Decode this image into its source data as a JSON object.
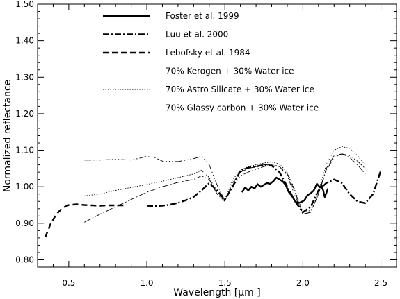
{
  "chart_data": {
    "type": "line",
    "xlabel": "Wavelength [μm ]",
    "ylabel": "Normalized reflectance",
    "xlim": [
      0.3,
      2.6
    ],
    "ylim": [
      0.78,
      1.5
    ],
    "xticks": [
      0.5,
      1.0,
      1.5,
      2.0,
      2.5
    ],
    "yticks": [
      0.8,
      0.9,
      1.0,
      1.1,
      1.2,
      1.3,
      1.4,
      1.5
    ],
    "xtick_labels": [
      "0.5",
      "1.0",
      "1.5",
      "2.0",
      "2.5"
    ],
    "ytick_labels": [
      "0.80",
      "0.90",
      "1.00",
      "1.10",
      "1.20",
      "1.30",
      "1.40",
      "1.50"
    ],
    "grid": false,
    "legend_position": "top-left",
    "series": [
      {
        "name": "Foster et al. 1999",
        "style": "solid-thick",
        "x": [
          1.61,
          1.63,
          1.65,
          1.67,
          1.69,
          1.71,
          1.73,
          1.75,
          1.77,
          1.79,
          1.81,
          1.83,
          1.85,
          1.87,
          1.89,
          1.91,
          1.93,
          1.95,
          1.97,
          1.99,
          2.01,
          2.03,
          2.05,
          2.07,
          2.09,
          2.11,
          2.12,
          2.13,
          2.14,
          2.15,
          2.16
        ],
        "y": [
          0.985,
          0.998,
          0.99,
          1.0,
          0.995,
          1.007,
          1.0,
          1.005,
          1.01,
          1.008,
          1.015,
          1.025,
          1.02,
          1.015,
          1.005,
          0.985,
          0.975,
          0.96,
          0.955,
          0.958,
          0.963,
          0.977,
          0.982,
          0.99,
          1.008,
          0.998,
          1.005,
          0.99,
          0.972,
          0.982,
          0.995
        ]
      },
      {
        "name": "Luu et al. 2000",
        "style": "dash-dot-thick",
        "x": [
          1.0,
          1.05,
          1.1,
          1.15,
          1.2,
          1.25,
          1.3,
          1.35,
          1.4,
          1.45,
          1.5,
          1.55,
          1.6,
          1.65,
          1.7,
          1.75,
          1.8,
          1.85,
          1.9,
          1.95,
          2.0,
          2.05,
          2.1,
          2.15,
          2.2,
          2.25,
          2.3,
          2.35,
          2.4,
          2.45,
          2.5
        ],
        "y": [
          0.948,
          0.947,
          0.948,
          0.951,
          0.956,
          0.963,
          0.972,
          0.99,
          1.01,
          0.99,
          0.965,
          1.0,
          1.045,
          1.052,
          1.055,
          1.06,
          1.058,
          1.04,
          1.0,
          0.96,
          0.93,
          0.945,
          0.99,
          1.01,
          1.02,
          1.01,
          0.98,
          0.96,
          0.955,
          0.98,
          1.045
        ]
      },
      {
        "name": "Lebofsky et al. 1984",
        "style": "dashed-thick",
        "x": [
          0.35,
          0.38,
          0.42,
          0.46,
          0.5,
          0.55,
          0.6,
          0.65,
          0.7,
          0.75,
          0.8,
          0.85
        ],
        "y": [
          0.862,
          0.895,
          0.925,
          0.942,
          0.95,
          0.952,
          0.95,
          0.949,
          0.948,
          0.949,
          0.949,
          0.949
        ]
      },
      {
        "name": "70% Kerogen + 30% Water ice",
        "style": "dash-dot-dot-dot",
        "x": [
          0.6,
          0.7,
          0.8,
          0.9,
          1.0,
          1.05,
          1.1,
          1.2,
          1.3,
          1.35,
          1.4,
          1.45,
          1.5,
          1.55,
          1.6,
          1.65,
          1.7,
          1.75,
          1.8,
          1.85,
          1.9,
          1.95,
          2.0,
          2.05,
          2.1,
          2.15,
          2.2,
          2.25,
          2.3,
          2.35,
          2.4
        ],
        "y": [
          1.073,
          1.073,
          1.075,
          1.073,
          1.083,
          1.08,
          1.07,
          1.069,
          1.077,
          1.083,
          1.06,
          1.005,
          0.962,
          1.0,
          1.03,
          1.04,
          1.048,
          1.055,
          1.06,
          1.056,
          1.03,
          0.975,
          0.925,
          0.93,
          0.98,
          1.045,
          1.08,
          1.09,
          1.085,
          1.07,
          1.05
        ]
      },
      {
        "name": "70% Astro Silicate + 30% Water ice",
        "style": "dotted",
        "x": [
          0.6,
          0.7,
          0.8,
          0.9,
          1.0,
          1.1,
          1.2,
          1.3,
          1.35,
          1.4,
          1.45,
          1.5,
          1.55,
          1.6,
          1.65,
          1.7,
          1.75,
          1.8,
          1.85,
          1.9,
          1.95,
          2.0,
          2.05,
          2.1,
          2.15,
          2.2,
          2.25,
          2.3,
          2.35,
          2.4
        ],
        "y": [
          0.975,
          0.98,
          0.99,
          0.998,
          1.006,
          1.015,
          1.025,
          1.035,
          1.045,
          1.025,
          0.985,
          0.962,
          1.02,
          1.045,
          1.055,
          1.06,
          1.065,
          1.068,
          1.062,
          1.04,
          0.99,
          0.93,
          0.935,
          0.99,
          1.06,
          1.1,
          1.11,
          1.105,
          1.085,
          1.06
        ]
      },
      {
        "name": "70% Glassy carbon + 30% Water ice",
        "style": "dash-dot-thin",
        "x": [
          0.6,
          0.7,
          0.8,
          0.9,
          1.0,
          1.1,
          1.2,
          1.3,
          1.35,
          1.4,
          1.45,
          1.5,
          1.55,
          1.6,
          1.65,
          1.7,
          1.75,
          1.8,
          1.85,
          1.9,
          1.95,
          2.0,
          2.05,
          2.1,
          2.15,
          2.2,
          2.25,
          2.3,
          2.35,
          2.4
        ],
        "y": [
          0.903,
          0.925,
          0.945,
          0.965,
          0.985,
          1.0,
          1.012,
          1.02,
          1.03,
          1.02,
          0.98,
          0.96,
          1.01,
          1.04,
          1.05,
          1.055,
          1.06,
          1.06,
          1.055,
          1.035,
          0.985,
          0.925,
          0.93,
          0.98,
          1.05,
          1.085,
          1.09,
          1.08,
          1.06,
          1.035
        ]
      }
    ]
  }
}
